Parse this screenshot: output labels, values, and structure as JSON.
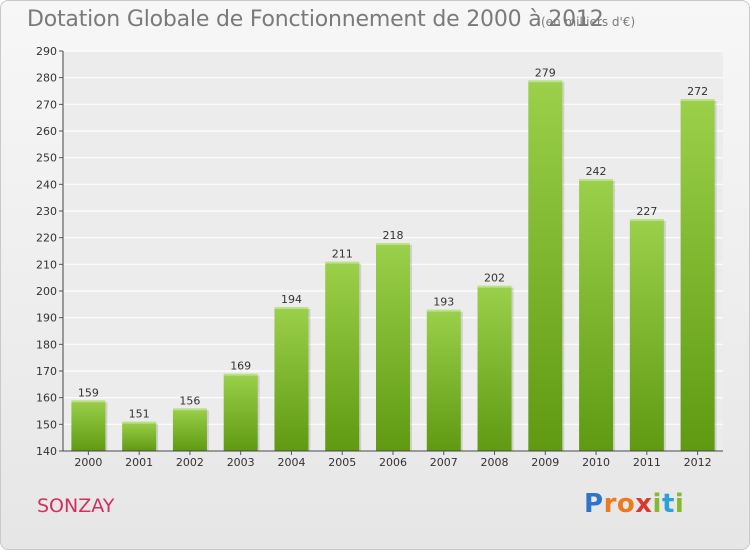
{
  "header": {
    "title": "Dotation Globale de Fonctionnement de 2000 à 2012",
    "subtitle": "(en milliers d'€)"
  },
  "footer": {
    "commune": "SONZAY",
    "logo_text": "Proxiti"
  },
  "colors": {
    "bar_top": "#9bd04a",
    "bar_bottom": "#5f9a12",
    "title": "#7a7a7a",
    "commune": "#d0315f"
  },
  "chart_data": {
    "type": "bar",
    "title": "Dotation Globale de Fonctionnement de 2000 à 2012",
    "subtitle": "(en milliers d'€)",
    "categories": [
      "2000",
      "2001",
      "2002",
      "2003",
      "2004",
      "2005",
      "2006",
      "2007",
      "2008",
      "2009",
      "2010",
      "2011",
      "2012"
    ],
    "values": [
      159,
      151,
      156,
      169,
      194,
      211,
      218,
      193,
      202,
      279,
      242,
      227,
      272
    ],
    "ylim": [
      140,
      290
    ],
    "yticks": [
      140,
      150,
      160,
      170,
      180,
      190,
      200,
      210,
      220,
      230,
      240,
      250,
      260,
      270,
      280,
      290
    ],
    "grid": true,
    "legend": "none"
  }
}
